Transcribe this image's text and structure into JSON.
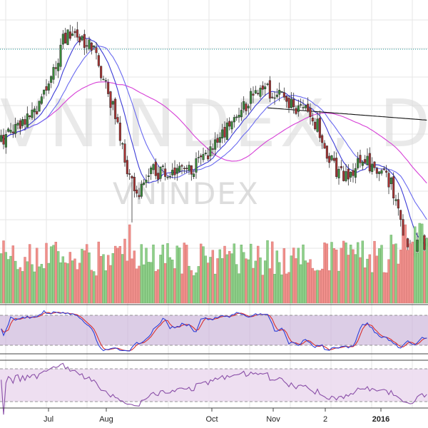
{
  "chart_data": {
    "type": "candlestick",
    "watermark_large": "VNINDEX, D",
    "watermark_small": "VNINDEX",
    "x_tick_labels": [
      "Jul",
      "Aug",
      "Oct",
      "Nov",
      "2",
      "2016"
    ],
    "bold_tick": "2016",
    "num_bars": 180,
    "price_range": [
      520,
      640
    ],
    "colors": {
      "up_candle": "#3a8a3a",
      "down_candle": "#a83232",
      "volume_up": "#8fcf8a",
      "volume_down": "#f0908c",
      "ma_fast": "#3b3bd6",
      "ma_mid": "#6a6af0",
      "ma_slow": "#d63fd6",
      "ma_long": "#111111",
      "stoch_k": "#2e3fd8",
      "stoch_d": "#d83030",
      "stoch_band": "#c9b2d8",
      "rsi_line": "#8a4fa8",
      "rsi_band": "#ecdcef",
      "grid": "#e6e6e6",
      "dotted_level": "#1e9a9a"
    },
    "grid": true
  }
}
